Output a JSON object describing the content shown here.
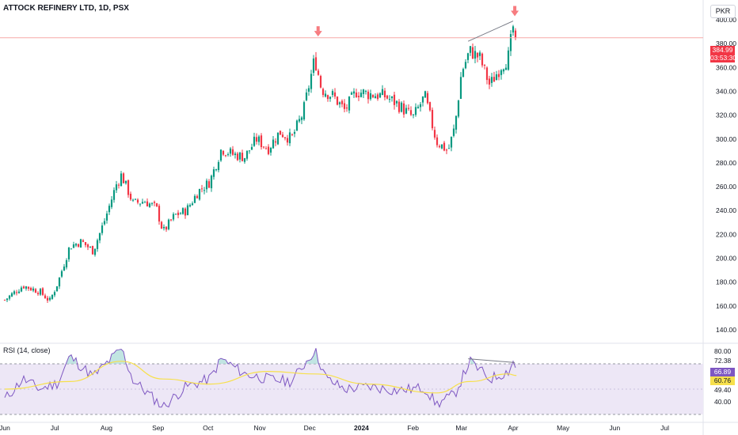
{
  "header": {
    "title": "ATTOCK REFINERY LTD, 1D, PSX",
    "currency": "PKR"
  },
  "price_tag": {
    "price": "384.99",
    "countdown": "03:53:30",
    "color": "#f23645"
  },
  "rsi": {
    "label": "RSI (14, close)",
    "current": "66.89",
    "ma": "60.76",
    "value_color": "#7e57c2",
    "ma_color": "#f7e04b"
  },
  "colors": {
    "up": "#089981",
    "down": "#f23645",
    "rsi_line": "#7e57c2",
    "rsi_ma": "#f7e04b",
    "band": "#ede7f6",
    "arrow": "#f77c80"
  },
  "chart_data": [
    {
      "type": "candlestick",
      "title": "ATTOCK REFINERY LTD, 1D, PSX",
      "x_axis_labels": [
        "Jun",
        "Jul",
        "Aug",
        "Sep",
        "Oct",
        "Nov",
        "Dec",
        "2024",
        "Feb",
        "Mar",
        "Apr",
        "May",
        "Jun",
        "Jul"
      ],
      "y_axis_labels": [
        "140.00",
        "160.00",
        "180.00",
        "200.00",
        "220.00",
        "240.00",
        "260.00",
        "280.00",
        "300.00",
        "320.00",
        "340.00",
        "360.00",
        "380.00",
        "400.00"
      ],
      "ylim": [
        130,
        410
      ],
      "close_path": [
        {
          "date": "2023-06-01",
          "close": 165
        },
        {
          "date": "2023-06-12",
          "close": 177
        },
        {
          "date": "2023-06-22",
          "close": 172
        },
        {
          "date": "2023-06-28",
          "close": 164
        },
        {
          "date": "2023-07-03",
          "close": 180
        },
        {
          "date": "2023-07-10",
          "close": 210
        },
        {
          "date": "2023-07-17",
          "close": 214
        },
        {
          "date": "2023-07-24",
          "close": 206
        },
        {
          "date": "2023-07-31",
          "close": 232
        },
        {
          "date": "2023-08-07",
          "close": 262
        },
        {
          "date": "2023-08-10",
          "close": 270
        },
        {
          "date": "2023-08-17",
          "close": 246
        },
        {
          "date": "2023-08-24",
          "close": 248
        },
        {
          "date": "2023-08-31",
          "close": 242
        },
        {
          "date": "2023-09-04",
          "close": 222
        },
        {
          "date": "2023-09-11",
          "close": 236
        },
        {
          "date": "2023-09-18",
          "close": 240
        },
        {
          "date": "2023-09-25",
          "close": 256
        },
        {
          "date": "2023-10-02",
          "close": 264
        },
        {
          "date": "2023-10-09",
          "close": 292
        },
        {
          "date": "2023-10-16",
          "close": 287
        },
        {
          "date": "2023-10-23",
          "close": 285
        },
        {
          "date": "2023-10-30",
          "close": 300
        },
        {
          "date": "2023-11-06",
          "close": 292
        },
        {
          "date": "2023-11-13",
          "close": 306
        },
        {
          "date": "2023-11-20",
          "close": 300
        },
        {
          "date": "2023-11-27",
          "close": 322
        },
        {
          "date": "2023-12-04",
          "close": 368
        },
        {
          "date": "2023-12-08",
          "close": 342
        },
        {
          "date": "2023-12-15",
          "close": 336
        },
        {
          "date": "2023-12-22",
          "close": 324
        },
        {
          "date": "2023-12-29",
          "close": 340
        },
        {
          "date": "2024-01-05",
          "close": 338
        },
        {
          "date": "2024-01-15",
          "close": 336
        },
        {
          "date": "2024-01-22",
          "close": 330
        },
        {
          "date": "2024-02-01",
          "close": 318
        },
        {
          "date": "2024-02-08",
          "close": 336
        },
        {
          "date": "2024-02-15",
          "close": 298
        },
        {
          "date": "2024-02-22",
          "close": 290
        },
        {
          "date": "2024-02-26",
          "close": 310
        },
        {
          "date": "2024-03-01",
          "close": 356
        },
        {
          "date": "2024-03-06",
          "close": 374
        },
        {
          "date": "2024-03-12",
          "close": 368
        },
        {
          "date": "2024-03-18",
          "close": 345
        },
        {
          "date": "2024-03-25",
          "close": 362
        },
        {
          "date": "2024-03-29",
          "close": 368
        },
        {
          "date": "2024-04-01",
          "close": 394
        },
        {
          "date": "2024-04-03",
          "close": 384.99
        }
      ],
      "current_price": 384.99,
      "annotations": [
        "down arrow at early December high",
        "down arrow at early April high",
        "trendline connecting March high to April high"
      ]
    },
    {
      "type": "line",
      "title": "RSI (14, close)",
      "y_axis_labels": [
        "40.00",
        "49.40",
        "60.76",
        "66.89",
        "72.38",
        "80.00"
      ],
      "ylim": [
        25,
        85
      ],
      "band": [
        30,
        70
      ],
      "series": [
        {
          "name": "RSI",
          "values": [
            {
              "date": "2023-06-01",
              "value": 42
            },
            {
              "date": "2023-06-12",
              "value": 58
            },
            {
              "date": "2023-06-22",
              "value": 50
            },
            {
              "date": "2023-07-03",
              "value": 55
            },
            {
              "date": "2023-07-10",
              "value": 76
            },
            {
              "date": "2023-07-24",
              "value": 60
            },
            {
              "date": "2023-08-07",
              "value": 78
            },
            {
              "date": "2023-08-10",
              "value": 82
            },
            {
              "date": "2023-08-17",
              "value": 57
            },
            {
              "date": "2023-09-04",
              "value": 36
            },
            {
              "date": "2023-09-18",
              "value": 52
            },
            {
              "date": "2023-10-02",
              "value": 58
            },
            {
              "date": "2023-10-09",
              "value": 74
            },
            {
              "date": "2023-10-23",
              "value": 62
            },
            {
              "date": "2023-11-06",
              "value": 58
            },
            {
              "date": "2023-11-20",
              "value": 56
            },
            {
              "date": "2023-12-04",
              "value": 81
            },
            {
              "date": "2023-12-11",
              "value": 58
            },
            {
              "date": "2023-12-22",
              "value": 50
            },
            {
              "date": "2024-01-05",
              "value": 52
            },
            {
              "date": "2024-01-22",
              "value": 49
            },
            {
              "date": "2024-02-08",
              "value": 51
            },
            {
              "date": "2024-02-15",
              "value": 38
            },
            {
              "date": "2024-02-26",
              "value": 46
            },
            {
              "date": "2024-03-06",
              "value": 72
            },
            {
              "date": "2024-03-18",
              "value": 58
            },
            {
              "date": "2024-03-29",
              "value": 64
            },
            {
              "date": "2024-04-01",
              "value": 72
            },
            {
              "date": "2024-04-03",
              "value": 66.89
            }
          ]
        },
        {
          "name": "RSI-based MA",
          "values": [
            {
              "date": "2023-06-01",
              "value": 50
            },
            {
              "date": "2023-07-10",
              "value": 56
            },
            {
              "date": "2023-08-10",
              "value": 72
            },
            {
              "date": "2023-09-04",
              "value": 58
            },
            {
              "date": "2023-10-02",
              "value": 54
            },
            {
              "date": "2023-11-06",
              "value": 64
            },
            {
              "date": "2023-12-04",
              "value": 62
            },
            {
              "date": "2024-01-05",
              "value": 54
            },
            {
              "date": "2024-02-15",
              "value": 47
            },
            {
              "date": "2024-03-06",
              "value": 56
            },
            {
              "date": "2024-03-29",
              "value": 62
            },
            {
              "date": "2024-04-03",
              "value": 60.76
            }
          ]
        }
      ]
    }
  ]
}
